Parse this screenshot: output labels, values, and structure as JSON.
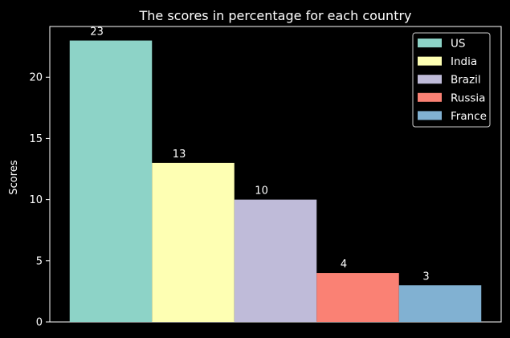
{
  "chart_data": {
    "type": "bar",
    "title": "The scores in percentage for each country",
    "xlabel": "",
    "ylabel": "Scores",
    "ylim": [
      0,
      24.15
    ],
    "yticks": [
      0,
      5,
      10,
      15,
      20
    ],
    "grid": false,
    "legend_position": "top-right",
    "categories": [
      "US",
      "India",
      "Brazil",
      "Russia",
      "France"
    ],
    "values": [
      23,
      13,
      10,
      4,
      3
    ],
    "colors": [
      "#8dd3c7",
      "#feffb3",
      "#bfbbd9",
      "#fa8174",
      "#81b1d2"
    ],
    "value_labels": [
      "23",
      "13",
      "10",
      "4",
      "3"
    ]
  },
  "theme": {
    "background": "#000000",
    "foreground": "#ffffff"
  }
}
